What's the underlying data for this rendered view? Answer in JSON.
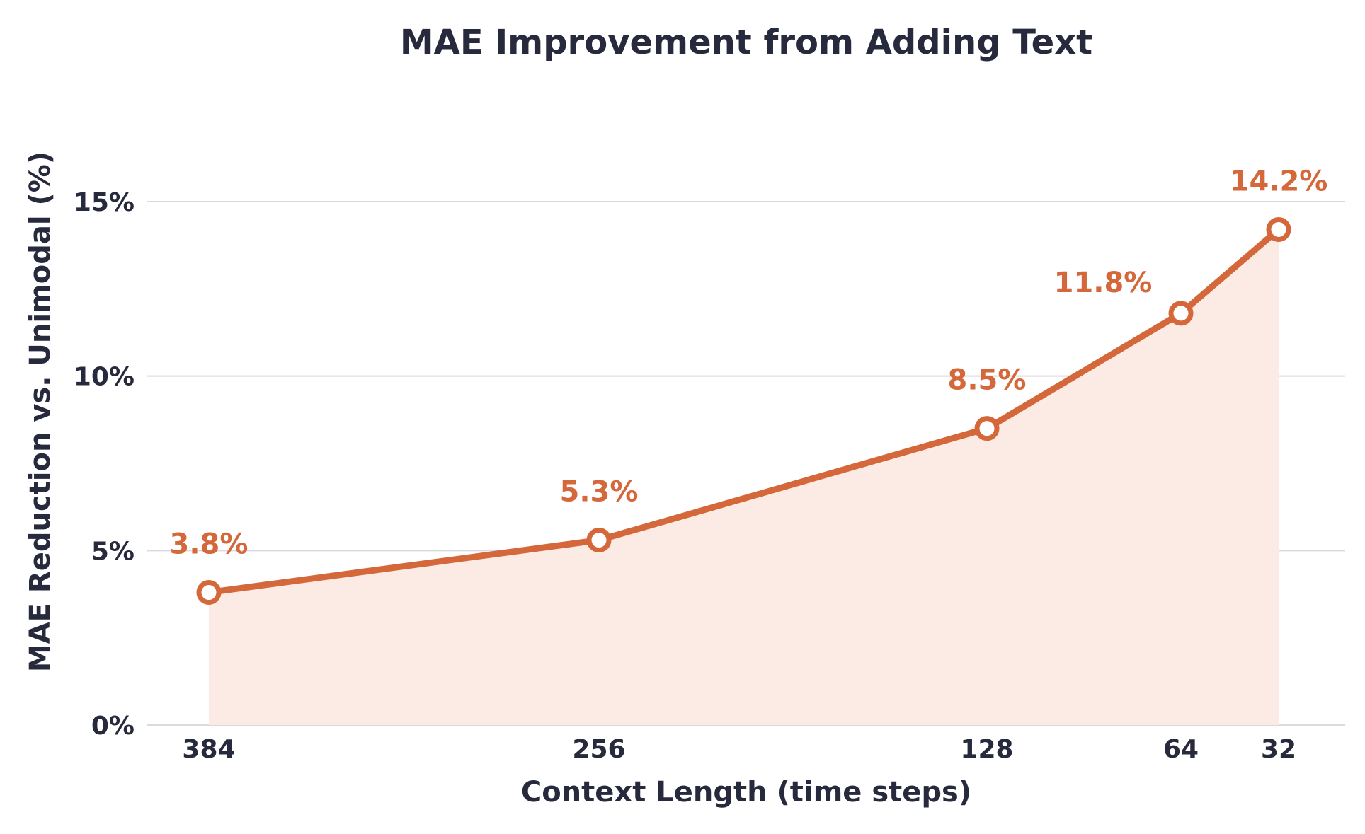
{
  "chart_data": {
    "type": "line",
    "title": "MAE Improvement from Adding Text",
    "xlabel": "Context Length (time steps)",
    "ylabel": "MAE Reduction vs. Unimodal (%)",
    "categories": [
      "384",
      "256",
      "128",
      "64",
      "32"
    ],
    "x": [
      384,
      256,
      128,
      64,
      32
    ],
    "x_axis_reversed": true,
    "series": [
      {
        "values": [
          3.8,
          5.3,
          8.5,
          11.8,
          14.2
        ],
        "data_labels": [
          "3.8%",
          "5.3%",
          "8.5%",
          "11.8%",
          "14.2%"
        ],
        "color": "#d4683a",
        "area_fill": true
      }
    ],
    "ylim": [
      0,
      15
    ],
    "yticks": [
      0,
      5,
      10,
      15
    ],
    "ytick_labels": [
      "0%",
      "5%",
      "10%",
      "15%"
    ],
    "grid": "horizontal",
    "legend": "none"
  },
  "colors": {
    "line": "#d4683a",
    "area": "#fbebe4",
    "text": "#272a3d",
    "grid": "#d9d9de"
  }
}
